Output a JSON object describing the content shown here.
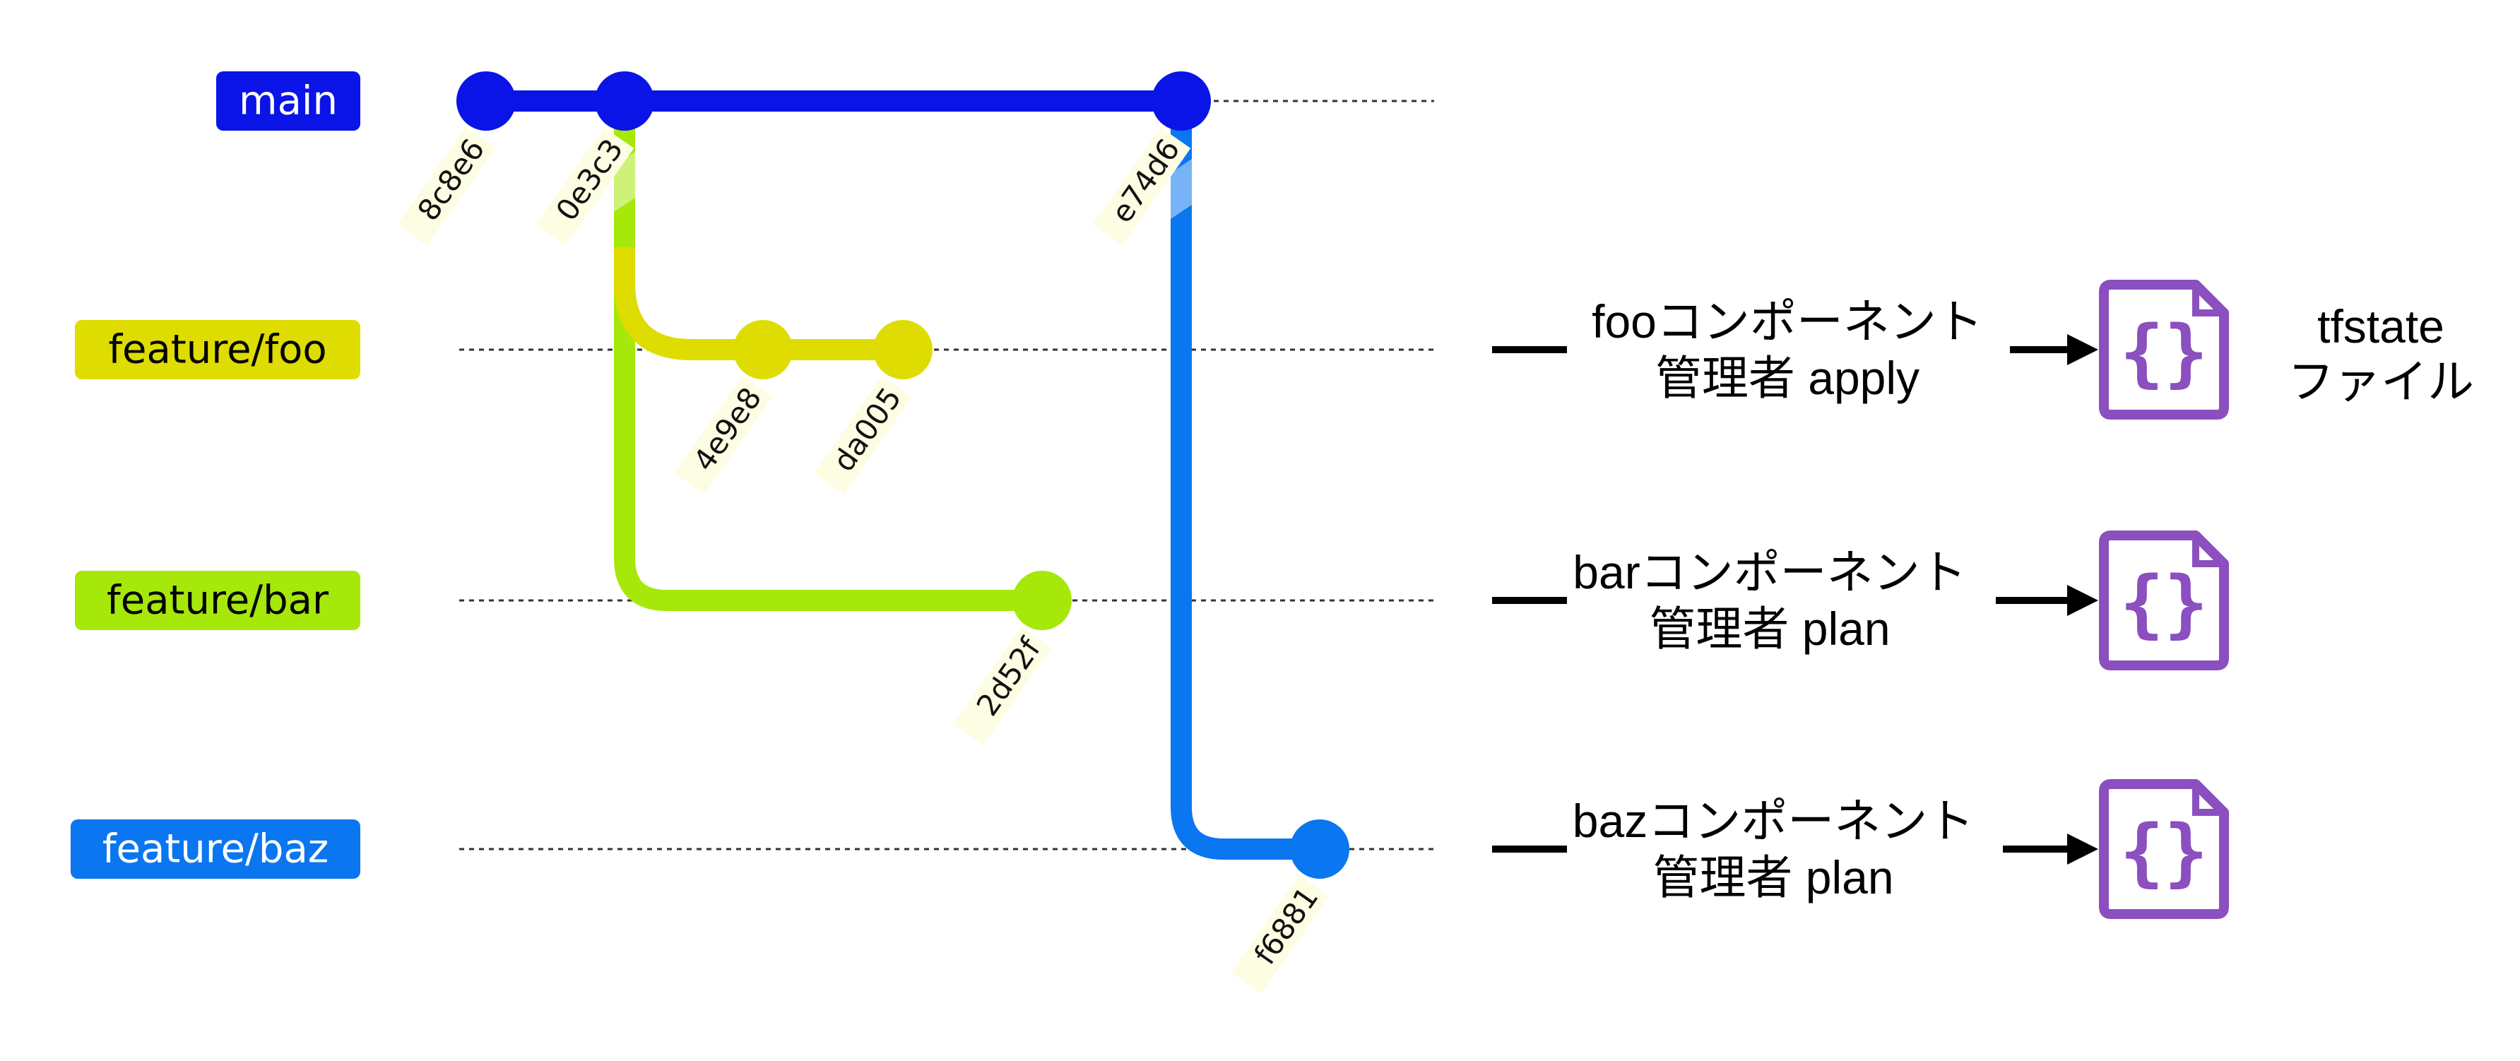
{
  "colors": {
    "main": "#0a14e6",
    "feature_foo": "#dedc00",
    "feature_bar": "#a6e80a",
    "feature_baz": "#0a76f0",
    "file_icon": "#8b4fbf",
    "commit_label_bg": "#fdfde3",
    "branch_text_light": "#ffffff",
    "branch_text_dark": "#000000"
  },
  "branches": [
    {
      "id": "main",
      "label": "main",
      "color_key": "main",
      "text_color_key": "branch_text_light"
    },
    {
      "id": "foo",
      "label": "feature/foo",
      "color_key": "feature_foo",
      "text_color_key": "branch_text_dark"
    },
    {
      "id": "bar",
      "label": "feature/bar",
      "color_key": "feature_bar",
      "text_color_key": "branch_text_dark"
    },
    {
      "id": "baz",
      "label": "feature/baz",
      "color_key": "feature_baz",
      "text_color_key": "branch_text_light"
    }
  ],
  "commits": [
    {
      "id": "8c8e6",
      "branch": "main"
    },
    {
      "id": "0e3c3",
      "branch": "main"
    },
    {
      "id": "e74d6",
      "branch": "main"
    },
    {
      "id": "4e9e8",
      "branch": "foo"
    },
    {
      "id": "da005",
      "branch": "foo"
    },
    {
      "id": "2d52f",
      "branch": "bar"
    },
    {
      "id": "f6881",
      "branch": "baz"
    }
  ],
  "steps": [
    {
      "branch": "foo",
      "line1": "fooコンポーネント",
      "line2": "管理者 apply",
      "icon": "json-file-icon",
      "icon_glyph": "{}"
    },
    {
      "branch": "bar",
      "line1": "barコンポーネント",
      "line2": "管理者 plan",
      "icon": "json-file-icon",
      "icon_glyph": "{}"
    },
    {
      "branch": "baz",
      "line1": "bazコンポーネント",
      "line2": "管理者 plan",
      "icon": "json-file-icon",
      "icon_glyph": "{}"
    }
  ],
  "tfstate_note": {
    "line1": "tfstate",
    "line2": "ファイル"
  }
}
